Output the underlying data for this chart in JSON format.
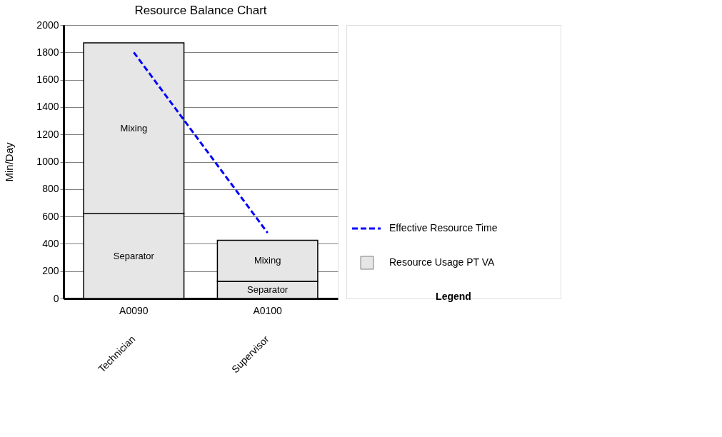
{
  "chart_data": {
    "type": "bar",
    "title": "Resource Balance Chart",
    "ylabel": "Min/Day",
    "categories": [
      "A0090",
      "A0100"
    ],
    "stacked": true,
    "series": [
      {
        "name": "Resource Usage PT VA",
        "color": "#e6e6e6",
        "values": [
          620,
          125
        ],
        "value_labels": [
          "Separator",
          "Separator"
        ]
      },
      {
        "color": "#e6e6e6",
        "values": [
          1250,
          300
        ],
        "value_labels": [
          "Mixing",
          "Mixing"
        ]
      },
      {
        "name": "Effective Resource Time",
        "type": "line",
        "color": "#0000ff",
        "line_style": "dashed",
        "values": [
          1800,
          480
        ]
      }
    ],
    "ylim": [
      0,
      2000
    ],
    "yticks": [
      0,
      200,
      400,
      600,
      800,
      1000,
      1200,
      1400,
      1600,
      1800,
      2000
    ],
    "grid": "y",
    "legend": "right",
    "legend_title": "Legend",
    "annotations": [
      "Technician",
      "Supervisor"
    ]
  }
}
